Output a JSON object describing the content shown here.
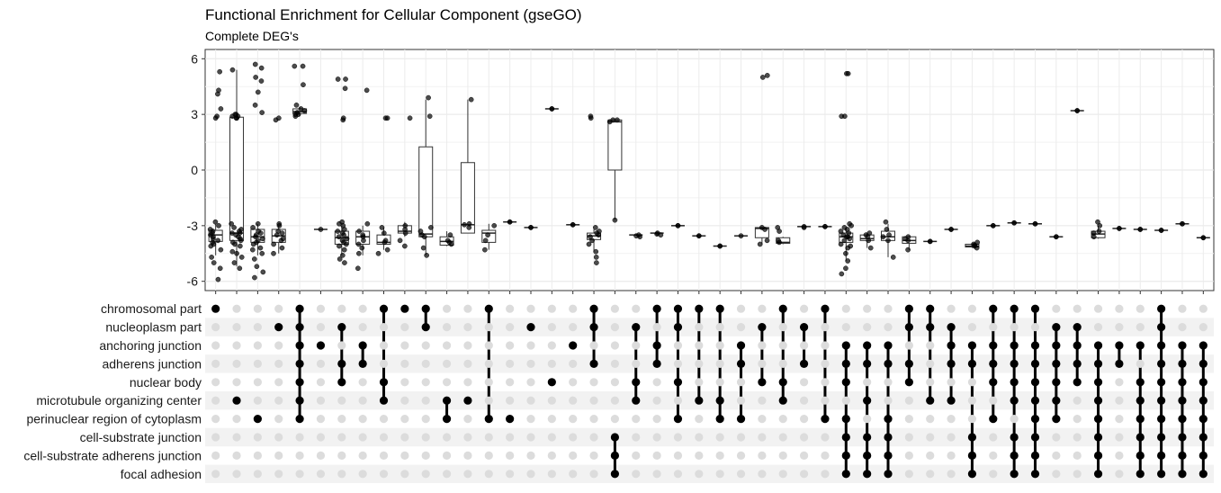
{
  "chart_data": {
    "type": "upset-boxplot",
    "title": "Functional Enrichment for Cellular Component (gseGO)",
    "subtitle": "Complete DEG's",
    "ylim": [
      -6.5,
      6.5
    ],
    "yticks": [
      6,
      3,
      0,
      -3,
      -6
    ],
    "sets": [
      "chromosomal part",
      "nucleoplasm part",
      "anchoring junction",
      "adherens junction",
      "nuclear body",
      "microtubule organizing center",
      "perinuclear region of cytoplasm",
      "cell-substrate junction",
      "cell-substrate adherens junction",
      "focal adhesion"
    ],
    "intersections": [
      {
        "sets": [
          0
        ],
        "points": [
          -3.2,
          -3.4,
          -3.5,
          -3.7,
          -3.9,
          -4.1,
          -4.3,
          -4.7,
          -5.0,
          -5.3,
          -5.9,
          -3.0,
          -2.8,
          -3.6,
          2.8,
          2.9,
          3.3,
          4.1,
          4.3,
          5.3,
          -3.3,
          -3.8,
          -4.0
        ],
        "box": [
          -3.85,
          -3.5,
          -3.25,
          -2.9,
          -4.6
        ]
      },
      {
        "sets": [
          5
        ],
        "points": [
          -3.2,
          -3.3,
          -3.4,
          -3.5,
          -3.7,
          -3.9,
          -4.1,
          -4.4,
          -4.7,
          -5.0,
          -5.3,
          -2.9,
          -3.1,
          -3.6,
          2.8,
          2.9,
          3.0,
          2.9,
          3.0,
          2.8,
          5.4,
          -3.4,
          -3.8,
          -4.0,
          -4.5
        ],
        "box": [
          -3.8,
          -3.4,
          2.85,
          2.95,
          -5.2
        ],
        "whiskerTop": 5.4
      },
      {
        "sets": [
          6
        ],
        "points": [
          -3.1,
          -3.3,
          -3.5,
          -3.6,
          -3.8,
          -4.0,
          -4.3,
          -4.5,
          -4.8,
          -5.2,
          -5.5,
          -5.8,
          -2.9,
          -3.7,
          3.1,
          3.5,
          4.2,
          4.8,
          5.0,
          5.5,
          5.7,
          -3.4,
          -3.9,
          -4.2
        ],
        "box": [
          -3.9,
          -3.6,
          -3.2,
          -2.9,
          -4.6
        ]
      },
      {
        "sets": [
          1
        ],
        "points": [
          -3.0,
          -3.3,
          -3.5,
          -3.7,
          -4.0,
          -4.2,
          -4.5,
          -2.9,
          2.7,
          2.8,
          -3.4,
          -3.8
        ],
        "box": [
          -3.9,
          -3.55,
          -3.2,
          -3.0,
          -4.5
        ]
      },
      {
        "sets": [
          0,
          1,
          2,
          3,
          4,
          5,
          6
        ],
        "points": [
          3.0,
          3.1,
          3.2,
          3.3,
          2.9,
          3.5,
          4.6,
          5.6,
          5.6,
          3.0
        ],
        "box": [
          3.05,
          3.15,
          3.3,
          3.4,
          2.9
        ],
        "whiskerTop": 3.4
      },
      {
        "sets": [
          2
        ],
        "points": [
          -3.2
        ],
        "box": null
      },
      {
        "sets": [
          1,
          3,
          4
        ],
        "points": [
          -3.0,
          -3.2,
          -3.4,
          -3.5,
          -3.7,
          -3.9,
          -4.1,
          -4.3,
          -4.6,
          -4.8,
          -5.0,
          -2.8,
          -2.9,
          -3.6,
          -3.8,
          2.7,
          2.8,
          4.4,
          4.9,
          4.9,
          -3.3,
          -4.0
        ],
        "box": [
          -4.0,
          -3.65,
          -3.3,
          -3.0,
          -4.6
        ]
      },
      {
        "sets": [
          2,
          3
        ],
        "points": [
          -3.3,
          -3.5,
          -3.8,
          -4.0,
          -4.2,
          -2.9,
          -4.5,
          -5.3,
          4.3,
          -3.6
        ],
        "box": [
          -4.0,
          -3.6,
          -3.3,
          -3.0,
          -4.6
        ]
      },
      {
        "sets": [
          0,
          4,
          5
        ],
        "points": [
          -3.1,
          -3.4,
          -3.9,
          -4.3,
          -4.5,
          -3.8,
          2.8,
          2.8
        ],
        "box": [
          -4.0,
          -3.9,
          -3.5,
          -3.1,
          -4.3
        ]
      },
      {
        "sets": [
          0
        ],
        "points": [
          -3.0,
          -3.2,
          -3.4,
          -3.8,
          -4.1,
          2.8
        ],
        "box": [
          -3.4,
          -3.3,
          -3.0,
          -2.8,
          -3.6
        ]
      },
      {
        "sets": [
          0,
          1
        ],
        "points": [
          -3.1,
          -3.3,
          -3.6,
          -4.2,
          -4.6,
          2.9,
          3.9,
          -3.5
        ],
        "box": [
          -3.6,
          -3.45,
          1.25,
          2.7,
          -4.6
        ],
        "whiskerTop": 3.8
      },
      {
        "sets": [
          5,
          6
        ],
        "points": [
          -3.5,
          -3.8,
          -4.0,
          -3.9
        ],
        "box": [
          -4.05,
          -3.85,
          -3.6,
          -3.3,
          -4.1
        ]
      },
      {
        "sets": [
          5
        ],
        "points": [
          -2.95,
          -3.1,
          3.8,
          -2.9
        ],
        "box": [
          -3.4,
          -2.95,
          0.4,
          3.8,
          -3.4
        ],
        "whiskerTop": 3.8
      },
      {
        "sets": [
          0,
          6
        ],
        "points": [
          -3.0,
          -3.5,
          -3.8,
          -4.3
        ],
        "box": [
          -3.9,
          -3.4,
          -3.25,
          -2.9,
          -4.3
        ]
      },
      {
        "sets": [
          6
        ],
        "points": [
          -2.8,
          -2.8
        ],
        "box": null
      },
      {
        "sets": [
          1
        ],
        "points": [
          -3.1,
          -3.1
        ],
        "box": null
      },
      {
        "sets": [
          4
        ],
        "points": [
          3.3,
          3.3
        ],
        "box": null
      },
      {
        "sets": [
          2
        ],
        "points": [
          -2.95,
          -2.95
        ],
        "box": null
      },
      {
        "sets": [
          0,
          1,
          3
        ],
        "points": [
          -3.1,
          -3.3,
          -3.5,
          -3.6,
          -3.8,
          -4.0,
          -4.4,
          -4.7,
          -5.0,
          2.8,
          2.9,
          -3.4
        ],
        "box": [
          -3.75,
          -3.55,
          -3.4,
          -3.2,
          -4.4
        ]
      },
      {
        "sets": [
          7,
          8,
          9
        ],
        "points": [
          2.7,
          2.7,
          -2.7,
          2.6
        ],
        "box": [
          0.0,
          2.6,
          2.7,
          2.75,
          -2.7
        ],
        "whiskerTop": 2.75
      },
      {
        "sets": [
          1,
          4,
          5
        ],
        "points": [
          -3.5,
          -3.6,
          -3.55
        ],
        "box": null
      },
      {
        "sets": [
          0,
          2,
          3
        ],
        "points": [
          -3.4,
          -3.5,
          -3.45
        ],
        "box": null
      },
      {
        "sets": [
          0,
          1,
          4,
          6
        ],
        "points": [
          -3.0,
          -3.0
        ],
        "box": null
      },
      {
        "sets": [
          0,
          5
        ],
        "points": [
          -3.55,
          -3.55
        ],
        "box": null
      },
      {
        "sets": [
          0,
          5,
          6
        ],
        "points": [
          -4.1,
          -4.1
        ],
        "box": null
      },
      {
        "sets": [
          2,
          3,
          6
        ],
        "points": [
          -3.55
        ],
        "box": null
      },
      {
        "sets": [
          1,
          4
        ],
        "points": [
          -3.1,
          -3.2,
          5.0,
          5.1,
          -3.8,
          -4.0
        ],
        "box": [
          -3.65,
          -3.15,
          -3.1,
          -3.05,
          -4.0
        ]
      },
      {
        "sets": [
          0,
          4,
          5
        ],
        "points": [
          -3.1,
          -3.3,
          -3.9,
          -3.8
        ],
        "box": [
          -3.95,
          -3.9,
          -3.65,
          -3.6,
          -4.0
        ]
      },
      {
        "sets": [
          1,
          3
        ],
        "points": [
          -3.05,
          -3.1
        ],
        "box": null
      },
      {
        "sets": [
          0,
          6
        ],
        "points": [
          -3.05,
          -3.05
        ],
        "box": null
      },
      {
        "sets": [
          2,
          3,
          4,
          6,
          7,
          8,
          9
        ],
        "points": [
          -3.0,
          -3.1,
          -3.3,
          -3.4,
          -3.5,
          -3.6,
          -3.8,
          -4.0,
          -4.2,
          -4.5,
          -4.9,
          -5.3,
          -5.6,
          -2.9,
          -3.2,
          -3.7,
          2.9,
          2.9,
          5.2,
          5.2,
          -3.6,
          -4.1
        ],
        "box": [
          -3.9,
          -3.6,
          -3.4,
          -3.1,
          -4.9
        ]
      },
      {
        "sets": [
          2,
          3,
          5,
          7,
          8,
          9
        ],
        "points": [
          -3.4,
          -3.6,
          -3.8,
          -4.2,
          -3.5
        ],
        "box": [
          -3.8,
          -3.7,
          -3.5,
          -3.4,
          -4.2
        ]
      },
      {
        "sets": [
          2,
          3,
          6,
          7,
          8,
          9
        ],
        "points": [
          -2.8,
          -3.2,
          -3.6,
          -3.8,
          -4.7,
          -3.5
        ],
        "box": [
          -3.8,
          -3.6,
          -3.3,
          -2.9,
          -4.7
        ]
      },
      {
        "sets": [
          0,
          1,
          3,
          4
        ],
        "points": [
          -3.6,
          -3.8,
          -4.3,
          -3.7
        ],
        "box": [
          -3.95,
          -3.8,
          -3.6,
          -3.55,
          -4.3
        ]
      },
      {
        "sets": [
          0,
          1,
          5
        ],
        "points": [
          -3.85,
          -3.85
        ],
        "box": null
      },
      {
        "sets": [
          1,
          2,
          3,
          5
        ],
        "points": [
          -3.2,
          -3.2
        ],
        "box": null
      },
      {
        "sets": [
          2,
          3,
          7,
          8,
          9
        ],
        "points": [
          -3.9,
          -4.0,
          -4.1,
          -4.2,
          -4.05
        ],
        "box": [
          -4.15,
          -4.1,
          -4.0,
          -3.95,
          -4.2
        ]
      },
      {
        "sets": [
          0,
          2,
          3,
          4,
          6
        ],
        "points": [
          -3.0,
          -3.0
        ],
        "box": null
      },
      {
        "sets": [
          0,
          2,
          3,
          4,
          5,
          7,
          8,
          9
        ],
        "points": [
          -2.85,
          -2.85
        ],
        "box": null
      },
      {
        "sets": [
          0,
          2,
          3,
          4,
          5,
          6,
          7,
          8,
          9
        ],
        "points": [
          -2.9,
          -2.9
        ],
        "box": null
      },
      {
        "sets": [
          1,
          2,
          3,
          4,
          5,
          6
        ],
        "points": [
          -3.6,
          -3.6
        ],
        "box": null
      },
      {
        "sets": [
          1,
          2,
          3,
          4
        ],
        "points": [
          3.2,
          3.2
        ],
        "box": null
      },
      {
        "sets": [
          2,
          3,
          4,
          5,
          6,
          7,
          8,
          9
        ],
        "points": [
          -2.8,
          -3.0,
          -3.6,
          -3.4,
          -3.3
        ],
        "box": [
          -3.65,
          -3.45,
          -3.3,
          -3.0,
          -3.7
        ]
      },
      {
        "sets": [
          2,
          3
        ],
        "points": [
          -3.15,
          -3.15
        ],
        "box": null
      },
      {
        "sets": [
          2,
          4,
          5,
          6,
          7,
          8,
          9
        ],
        "points": [
          -3.2,
          -3.2
        ],
        "box": null
      },
      {
        "sets": [
          0,
          1,
          2,
          3,
          4,
          5,
          6,
          7,
          8,
          9
        ],
        "points": [
          -3.25,
          -3.25
        ],
        "box": null
      },
      {
        "sets": [
          2,
          3,
          4,
          5,
          6,
          7,
          8,
          9
        ],
        "points": [
          -2.9,
          -2.9
        ],
        "box": null
      },
      {
        "sets": [
          2,
          3,
          4,
          5,
          6,
          7,
          8,
          9
        ],
        "points": [
          -3.65,
          -3.65
        ],
        "box": null
      }
    ]
  }
}
